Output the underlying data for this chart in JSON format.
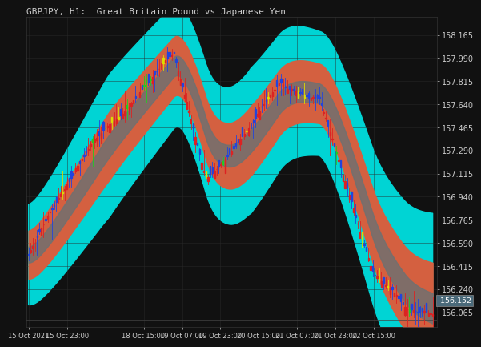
{
  "title": "GBPJPY, H1:  Great Britain Pound vs Japanese Yen",
  "title_fontsize": 8,
  "background_color": "#111111",
  "text_color": "#cccccc",
  "ylim": [
    155.95,
    158.3
  ],
  "yticks": [
    158.165,
    157.99,
    157.815,
    157.64,
    157.465,
    157.29,
    157.115,
    156.94,
    156.765,
    156.59,
    156.415,
    156.24,
    156.065
  ],
  "current_price": 156.152,
  "current_price_color": "#4a6a7a",
  "xlabel_ticks": [
    "15 Oct 2021",
    "15 Oct 23:00",
    "18 Oct 15:00",
    "19 Oct 07:00",
    "19 Oct 23:00",
    "20 Oct 15:00",
    "21 Oct 07:00",
    "21 Oct 23:00",
    "22 Oct 15:00"
  ],
  "xlabel_positions_frac": [
    0.0,
    0.095,
    0.285,
    0.38,
    0.475,
    0.57,
    0.665,
    0.76,
    0.855
  ],
  "keltner_outer_color": "#00d4d4",
  "keltner_inner_color": "#d46040",
  "flat_zone_color": "#707070",
  "candle_up_color": "#dd2222",
  "candle_down_color": "#2244dd",
  "candle_yellow_color": "#dddd00",
  "candle_green_color": "#22cc22"
}
